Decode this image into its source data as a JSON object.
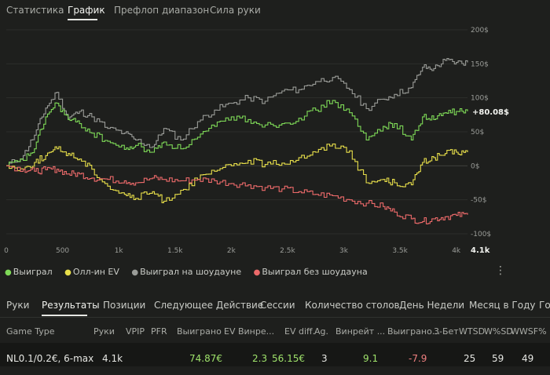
{
  "top_tabs": [
    "Статистика",
    "График",
    "Префлоп диапазон",
    "Сила руки"
  ],
  "top_active": 1,
  "chart_data": {
    "type": "line",
    "xlabel": "",
    "ylabel": "",
    "x_ticks": [
      "0",
      "500",
      "1k",
      "1.5k",
      "2k",
      "2.5k",
      "3k",
      "3.5k",
      "4k"
    ],
    "x_range": [
      0,
      4100
    ],
    "y_ticks": [
      "200$",
      "150$",
      "100$",
      "50$",
      "0$",
      "-50$",
      "-100$"
    ],
    "y_range": [
      -100,
      200
    ],
    "grid": true,
    "legend_position": "bottom-left",
    "end_label": "4.1k",
    "value_label": "+80.08$",
    "series": [
      {
        "name": "Выиграл на шоудауне",
        "color": "#9a9c98",
        "x": [
          0,
          150,
          250,
          350,
          450,
          550,
          650,
          760,
          900,
          1050,
          1150,
          1300,
          1400,
          1550,
          1700,
          1850,
          2000,
          2150,
          2300,
          2450,
          2600,
          2750,
          2900,
          3050,
          3200,
          3350,
          3450,
          3600,
          3700,
          3800,
          3900,
          4000,
          4100
        ],
        "y": [
          0,
          15,
          45,
          85,
          108,
          70,
          80,
          72,
          55,
          48,
          38,
          28,
          55,
          38,
          65,
          82,
          92,
          100,
          95,
          110,
          112,
          124,
          130,
          112,
          84,
          98,
          105,
          115,
          145,
          143,
          155,
          152,
          152
        ]
      },
      {
        "name": "Выиграл",
        "color": "#7ed957",
        "x": [
          0,
          150,
          250,
          350,
          450,
          550,
          650,
          760,
          900,
          1050,
          1150,
          1300,
          1400,
          1550,
          1700,
          1850,
          2000,
          2150,
          2300,
          2450,
          2600,
          2750,
          2900,
          3050,
          3200,
          3350,
          3450,
          3600,
          3700,
          3800,
          3900,
          4000,
          4100
        ],
        "y": [
          0,
          8,
          25,
          72,
          92,
          68,
          62,
          48,
          36,
          24,
          30,
          20,
          35,
          25,
          42,
          58,
          72,
          68,
          60,
          62,
          70,
          82,
          96,
          78,
          38,
          58,
          62,
          38,
          72,
          68,
          78,
          80,
          80.08
        ]
      },
      {
        "name": "Олл-ин EV",
        "color": "#e8df4a",
        "x": [
          0,
          150,
          250,
          350,
          450,
          550,
          650,
          760,
          900,
          1050,
          1150,
          1300,
          1400,
          1550,
          1700,
          1850,
          2000,
          2150,
          2300,
          2450,
          2600,
          2750,
          2900,
          3050,
          3200,
          3350,
          3450,
          3600,
          3700,
          3800,
          3900,
          4000,
          4100
        ],
        "y": [
          0,
          -5,
          5,
          15,
          25,
          18,
          10,
          -5,
          -30,
          -42,
          -48,
          -38,
          -52,
          -36,
          -20,
          -8,
          0,
          8,
          2,
          4,
          12,
          20,
          32,
          22,
          -25,
          -20,
          -25,
          -28,
          5,
          12,
          18,
          20,
          20
        ]
      },
      {
        "name": "Выиграл без шоудауна",
        "color": "#ec6a6a",
        "x": [
          0,
          150,
          250,
          350,
          450,
          550,
          650,
          760,
          900,
          1050,
          1150,
          1300,
          1400,
          1550,
          1700,
          1850,
          2000,
          2150,
          2300,
          2450,
          2600,
          2750,
          2900,
          3050,
          3200,
          3350,
          3450,
          3600,
          3700,
          3800,
          3900,
          4000,
          4100
        ],
        "y": [
          0,
          -5,
          -8,
          -6,
          -5,
          -12,
          -12,
          -18,
          -20,
          -22,
          -25,
          -18,
          -20,
          -22,
          -20,
          -22,
          -26,
          -28,
          -32,
          -34,
          -38,
          -42,
          -44,
          -50,
          -55,
          -60,
          -68,
          -78,
          -82,
          -78,
          -75,
          -73,
          -72
        ]
      }
    ]
  },
  "legend": [
    {
      "label": "Выиграл",
      "color": "#7ed957"
    },
    {
      "label": "Олл-ин EV",
      "color": "#e8df4a"
    },
    {
      "label": "Выиграл на шоудауне",
      "color": "#9a9c98"
    },
    {
      "label": "Выиграл без шоудауна",
      "color": "#ec6a6a"
    }
  ],
  "menu_icon": "⋮",
  "bottom_tabs": [
    "Руки",
    "Результаты",
    "Позиции",
    "Следующее Действие",
    "Сессии",
    "Количество столов",
    "День Недели",
    "Месяц в Году",
    "Го"
  ],
  "bottom_active": 1,
  "table": {
    "headers": [
      "Game Type",
      "Руки",
      "VPIP",
      "PFR",
      "Выиграно",
      "EV Винре...",
      "EV diff.",
      "Ag.",
      "Винрейт ...",
      "Выиграно...",
      "3-Бет",
      "WTSD",
      "W%SD",
      "WWSF%"
    ],
    "row": [
      "NL0.1/0.2€, 6-max",
      "4.1k",
      "",
      "",
      "74.87€",
      "2.3",
      "56.15€",
      "3",
      "9.1",
      "-7.9",
      "",
      "25",
      "59",
      "49"
    ]
  }
}
